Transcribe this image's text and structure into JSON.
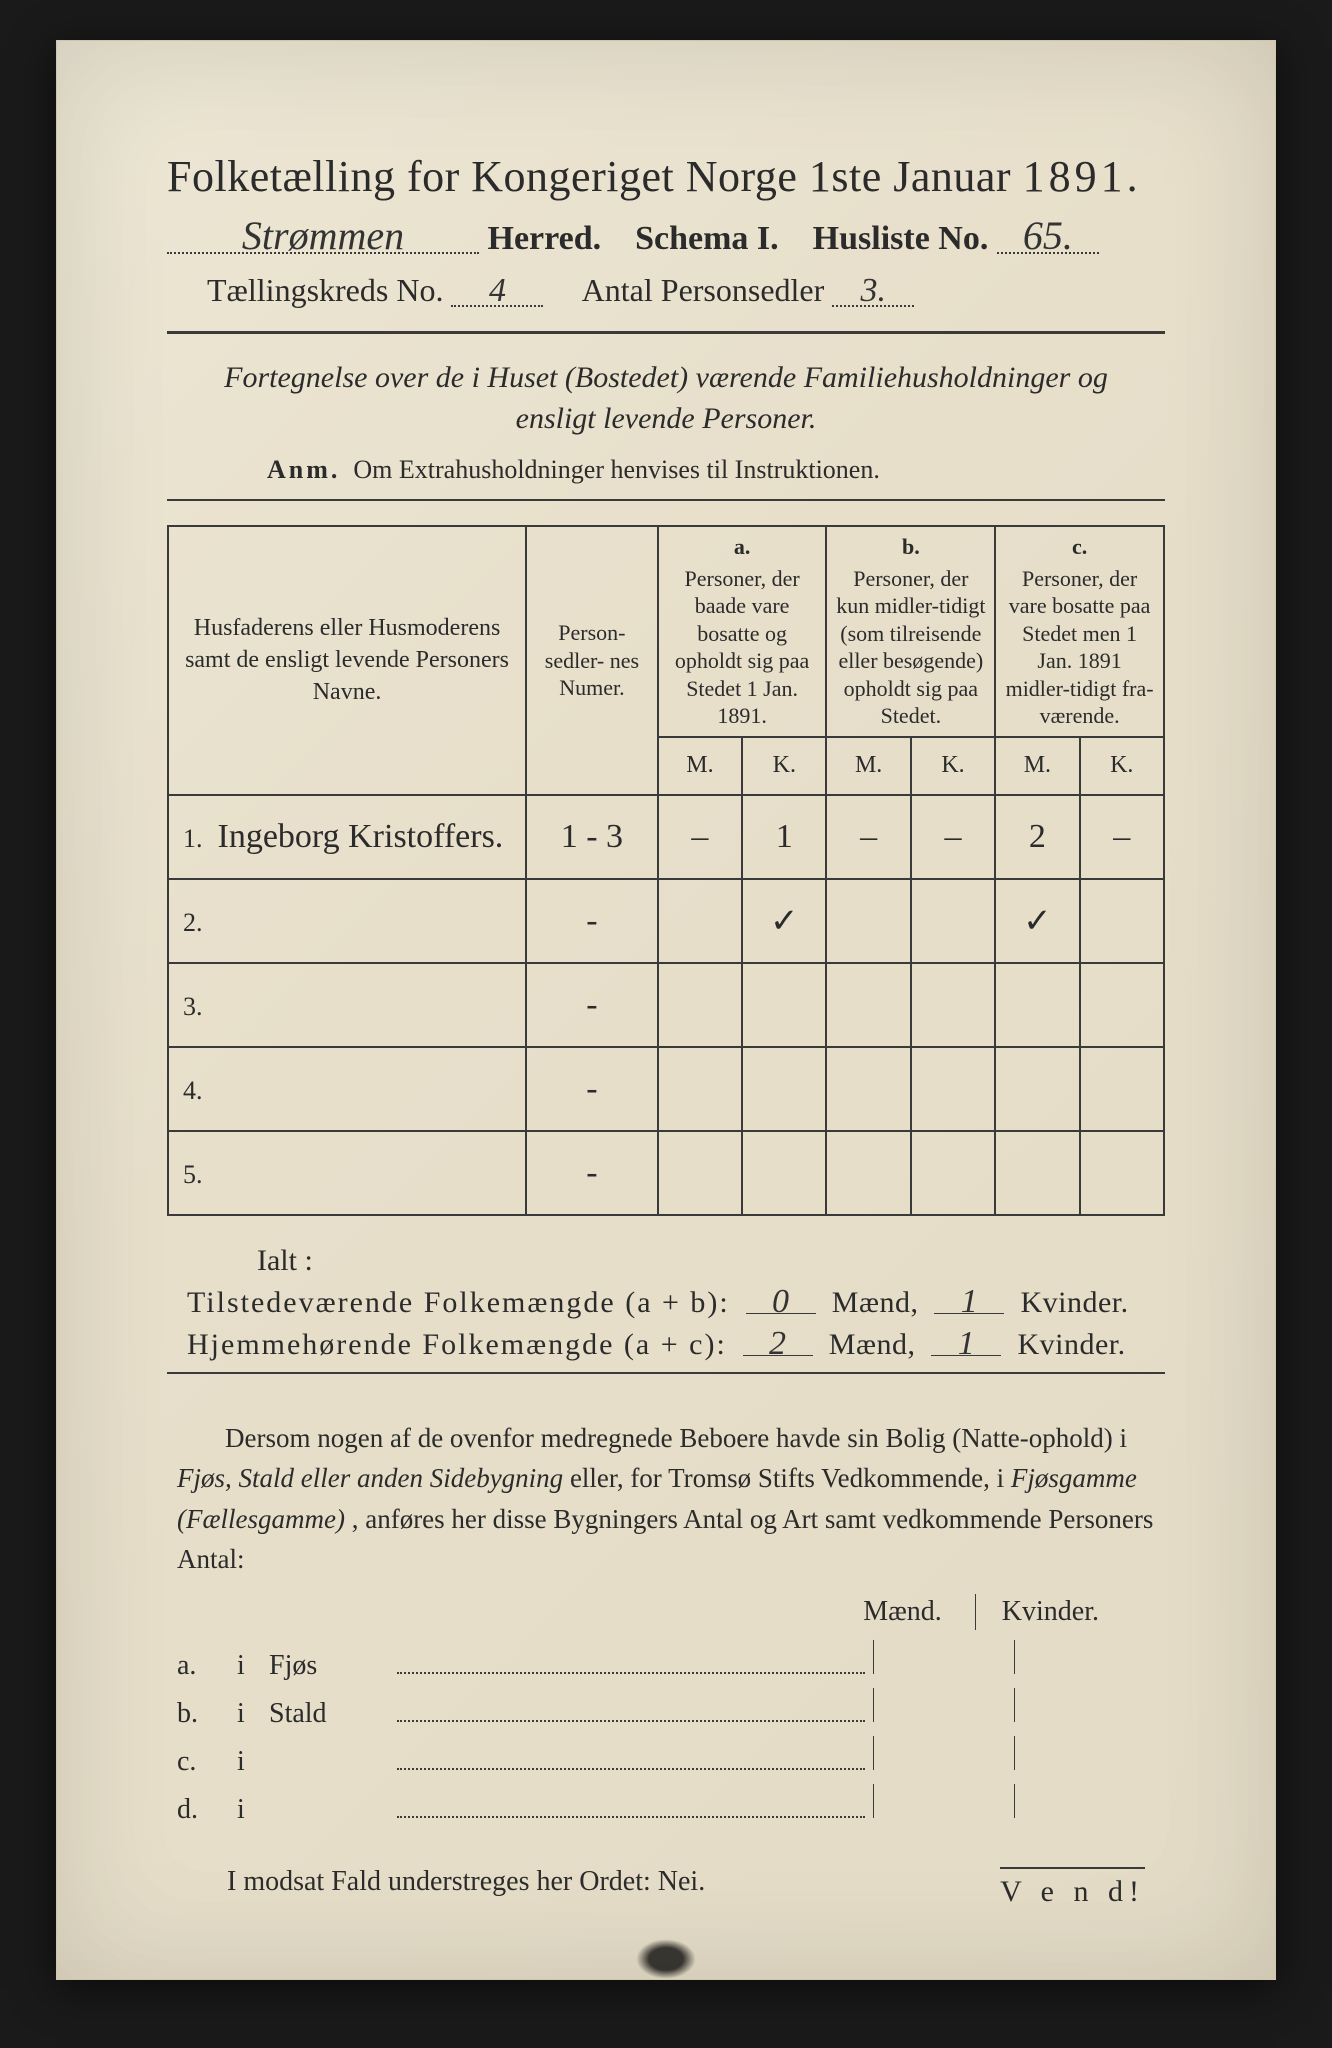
{
  "colors": {
    "paper": "#eae3d0",
    "ink": "#2b2b2b",
    "line": "#3a3a3a",
    "background": "#1a1a1a"
  },
  "title": {
    "main": "Folketælling for Kongeriget Norge",
    "date": "1ste Januar",
    "year": "1891."
  },
  "line2": {
    "herred_value": "Strømmen",
    "herred_label": "Herred.",
    "schema_label": "Schema I.",
    "husliste_label": "Husliste No.",
    "husliste_value": "65."
  },
  "line3": {
    "kreds_label": "Tællingskreds No.",
    "kreds_value": "4",
    "antal_label": "Antal Personsedler",
    "antal_value": "3."
  },
  "fortegnelse": "Fortegnelse over de i Huset (Bostedet) værende Familiehusholdninger og ensligt levende Personer.",
  "anm_lead": "Anm.",
  "anm_text": "Om Extrahusholdninger henvises til Instruktionen.",
  "table": {
    "col_names": "Husfaderens eller Husmoderens samt de ensligt levende Personers Navne.",
    "col_num": "Person-\nsedler-\nnes\nNumer.",
    "col_a_hdr": "a.",
    "col_a": "Personer, der baade vare bosatte og opholdt sig paa Stedet 1 Jan. 1891.",
    "col_b_hdr": "b.",
    "col_b": "Personer, der kun midler-tidigt (som tilreisende eller besøgende) opholdt sig paa Stedet.",
    "col_c_hdr": "c.",
    "col_c": "Personer, der vare bosatte paa Stedet men 1 Jan. 1891 midler-tidigt fra-værende.",
    "M": "M.",
    "K": "K.",
    "rows": [
      {
        "idx": "1.",
        "name": "Ingeborg Kristoffers.",
        "num": "1 - 3",
        "aM": "–",
        "aK": "1",
        "bM": "–",
        "bK": "–",
        "cM": "2",
        "cK": "–"
      },
      {
        "idx": "2.",
        "name": "",
        "num": "-",
        "aM": "",
        "aK": "✓",
        "bM": "",
        "bK": "",
        "cM": "✓",
        "cK": ""
      },
      {
        "idx": "3.",
        "name": "",
        "num": "-",
        "aM": "",
        "aK": "",
        "bM": "",
        "bK": "",
        "cM": "",
        "cK": ""
      },
      {
        "idx": "4.",
        "name": "",
        "num": "-",
        "aM": "",
        "aK": "",
        "bM": "",
        "bK": "",
        "cM": "",
        "cK": ""
      },
      {
        "idx": "5.",
        "name": "",
        "num": "-",
        "aM": "",
        "aK": "",
        "bM": "",
        "bK": "",
        "cM": "",
        "cK": ""
      }
    ]
  },
  "ialt": "Ialt :",
  "sum": {
    "tilst_label": "Tilstedeværende Folkemængde (a + b):",
    "tilst_m": "0",
    "maend": "Mænd,",
    "tilst_k": "1",
    "kvinder": "Kvinder.",
    "hjem_label": "Hjemmehørende Folkemængde (a + c):",
    "hjem_m": "2",
    "hjem_k": "1"
  },
  "para": {
    "t1": "Dersom nogen af de ovenfor medregnede Beboere havde sin Bolig (Natte-ophold) i ",
    "i1": "Fjøs, Stald eller anden Sidebygning",
    "t2": " eller, for Tromsø Stifts Vedkommende, i ",
    "i2": "Fjøsgamme (Fællesgamme)",
    "t3": ", anføres her disse Bygningers Antal og Art samt vedkommende Personers Antal:"
  },
  "mk": {
    "m": "Mænd.",
    "k": "Kvinder."
  },
  "bygning": [
    {
      "lbl": "a.",
      "i": "i",
      "cat": "Fjøs"
    },
    {
      "lbl": "b.",
      "i": "i",
      "cat": "Stald"
    },
    {
      "lbl": "c.",
      "i": "i",
      "cat": ""
    },
    {
      "lbl": "d.",
      "i": "i",
      "cat": ""
    }
  ],
  "nei": "I modsat Fald understreges her Ordet: Nei.",
  "vend": "V e n d!"
}
